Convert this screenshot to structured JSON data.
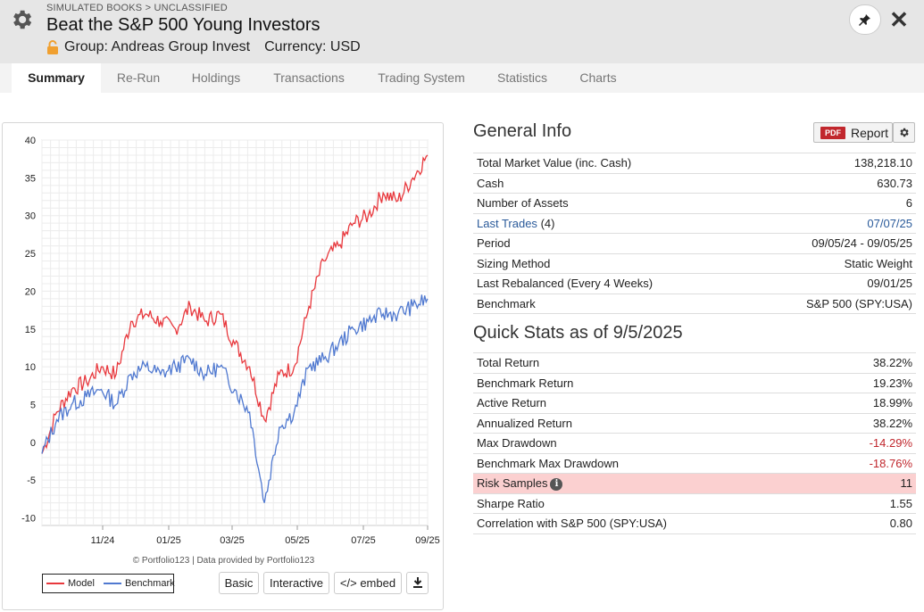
{
  "header": {
    "breadcrumb": "SIMULATED BOOKS > UNCLASSIFIED",
    "title": "Beat the S&P 500 Young Investors",
    "group": "Group: Andreas Group Invest",
    "currency": "Currency: USD"
  },
  "tabs": [
    "Summary",
    "Re-Run",
    "Holdings",
    "Transactions",
    "Trading System",
    "Statistics",
    "Charts"
  ],
  "chart": {
    "credit": "© Portfolio123 | Data provided by Portfolio123",
    "legend": {
      "model": "Model",
      "benchmark": "Benchmark"
    },
    "buttons": {
      "basic": "Basic",
      "interactive": "Interactive",
      "embed": "</> embed"
    }
  },
  "chart_data": {
    "type": "line",
    "x_ticks": [
      "11/24",
      "01/25",
      "03/25",
      "05/25",
      "07/25",
      "09/25"
    ],
    "y_ticks": [
      40,
      35,
      30,
      25,
      20,
      15,
      10,
      5,
      0,
      -5,
      -10
    ],
    "ylim": [
      -11,
      40
    ],
    "grid": true,
    "legend_position": "bottom-left",
    "x": [
      "09/05/24",
      "09/20/24",
      "10/05/24",
      "10/20/24",
      "11/05/24",
      "11/20/24",
      "12/05/24",
      "12/20/24",
      "01/05/25",
      "01/20/25",
      "02/05/25",
      "02/20/25",
      "03/05/25",
      "03/20/25",
      "04/01/25",
      "04/08/25",
      "04/15/25",
      "04/25/25",
      "05/05/25",
      "05/20/25",
      "06/05/25",
      "06/20/25",
      "07/05/25",
      "07/20/25",
      "08/05/25",
      "08/20/25",
      "09/05/25"
    ],
    "series": [
      {
        "name": "Model",
        "color": "#e8383d",
        "values": [
          -1.5,
          4,
          7,
          8,
          10,
          9,
          16,
          17,
          16,
          15,
          18,
          16,
          17,
          13,
          10,
          3,
          9,
          10,
          18,
          24,
          26,
          29,
          30,
          33,
          32,
          35,
          38
        ]
      },
      {
        "name": "Benchmark",
        "color": "#5079d0",
        "values": [
          -1.5,
          3,
          5,
          6,
          7,
          5,
          9,
          10,
          9,
          10,
          11,
          9,
          10,
          7,
          4,
          -8,
          2,
          4,
          10,
          11,
          13,
          15,
          16,
          17,
          17,
          18,
          19
        ]
      }
    ]
  },
  "general_info": {
    "title": "General Info",
    "report_label": "Report",
    "pdf_label": "PDF",
    "rows": [
      {
        "label": "Total Market Value (inc. Cash)",
        "value": "138,218.10"
      },
      {
        "label": "Cash",
        "value": "630.73"
      },
      {
        "label": "Number of Assets",
        "value": "6"
      },
      {
        "label": "Last Trades",
        "count": "(4)",
        "value": "07/07/25"
      },
      {
        "label": "Period",
        "value": "09/05/24 - 09/05/25"
      },
      {
        "label": "Sizing Method",
        "value": "Static Weight"
      },
      {
        "label": "Last Rebalanced (Every 4 Weeks)",
        "value": "09/01/25"
      },
      {
        "label": "Benchmark",
        "value": "S&P 500 (SPY:USA)"
      }
    ]
  },
  "quick_stats": {
    "title": "Quick Stats as of 9/5/2025",
    "rows": [
      {
        "label": "Total Return",
        "value": "38.22%"
      },
      {
        "label": "Benchmark Return",
        "value": "19.23%"
      },
      {
        "label": "Active Return",
        "value": "18.99%"
      },
      {
        "label": "Annualized Return",
        "value": "38.22%"
      },
      {
        "label": "Max Drawdown",
        "value": "-14.29%"
      },
      {
        "label": "Benchmark Max Drawdown",
        "value": "-18.76%"
      },
      {
        "label": "Risk Samples",
        "value": "11"
      },
      {
        "label": "Sharpe Ratio",
        "value": "1.55"
      },
      {
        "label": "Correlation with S&P 500 (SPY:USA)",
        "value": "0.80"
      }
    ]
  }
}
